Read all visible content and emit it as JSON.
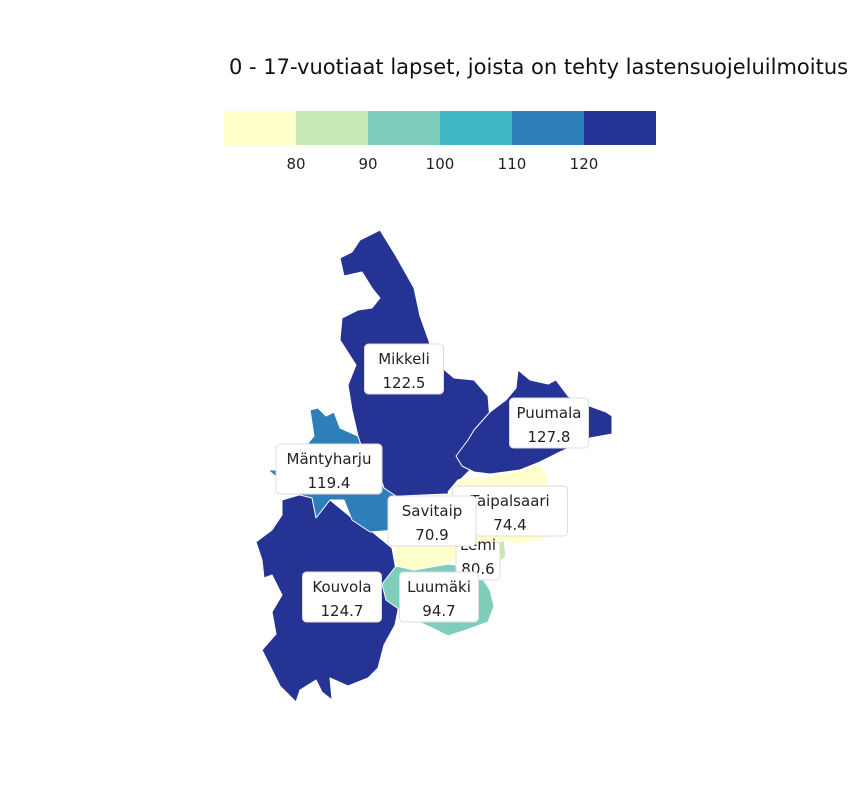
{
  "title": "0 - 17-vuotiaat lapset, joista on tehty lastensuojeluilmoitus",
  "legend": {
    "colors": [
      "#ffffcc",
      "#c7e9b4",
      "#7fcdbb",
      "#41b6c4",
      "#2c7fb8",
      "#253494"
    ],
    "ticks": [
      "80",
      "90",
      "100",
      "110",
      "120"
    ]
  },
  "regions": [
    {
      "name": "Mikkeli",
      "value": "122.5",
      "color": "#253494"
    },
    {
      "name": "Puumala",
      "value": "127.8",
      "color": "#253494"
    },
    {
      "name": "Mäntyharju",
      "value": "119.4",
      "color": "#2c7fb8"
    },
    {
      "name": "Savitaip",
      "value": "70.9",
      "color": "#ffffcc"
    },
    {
      "name": "Taipalsaari",
      "value": "74.4",
      "color": "#ffffcc"
    },
    {
      "name": "Lemi",
      "value": "80.6",
      "color": "#c7e9b4"
    },
    {
      "name": "Kouvola",
      "value": "124.7",
      "color": "#253494"
    },
    {
      "name": "Luumäki",
      "value": "94.7",
      "color": "#7fcdbb"
    }
  ]
}
